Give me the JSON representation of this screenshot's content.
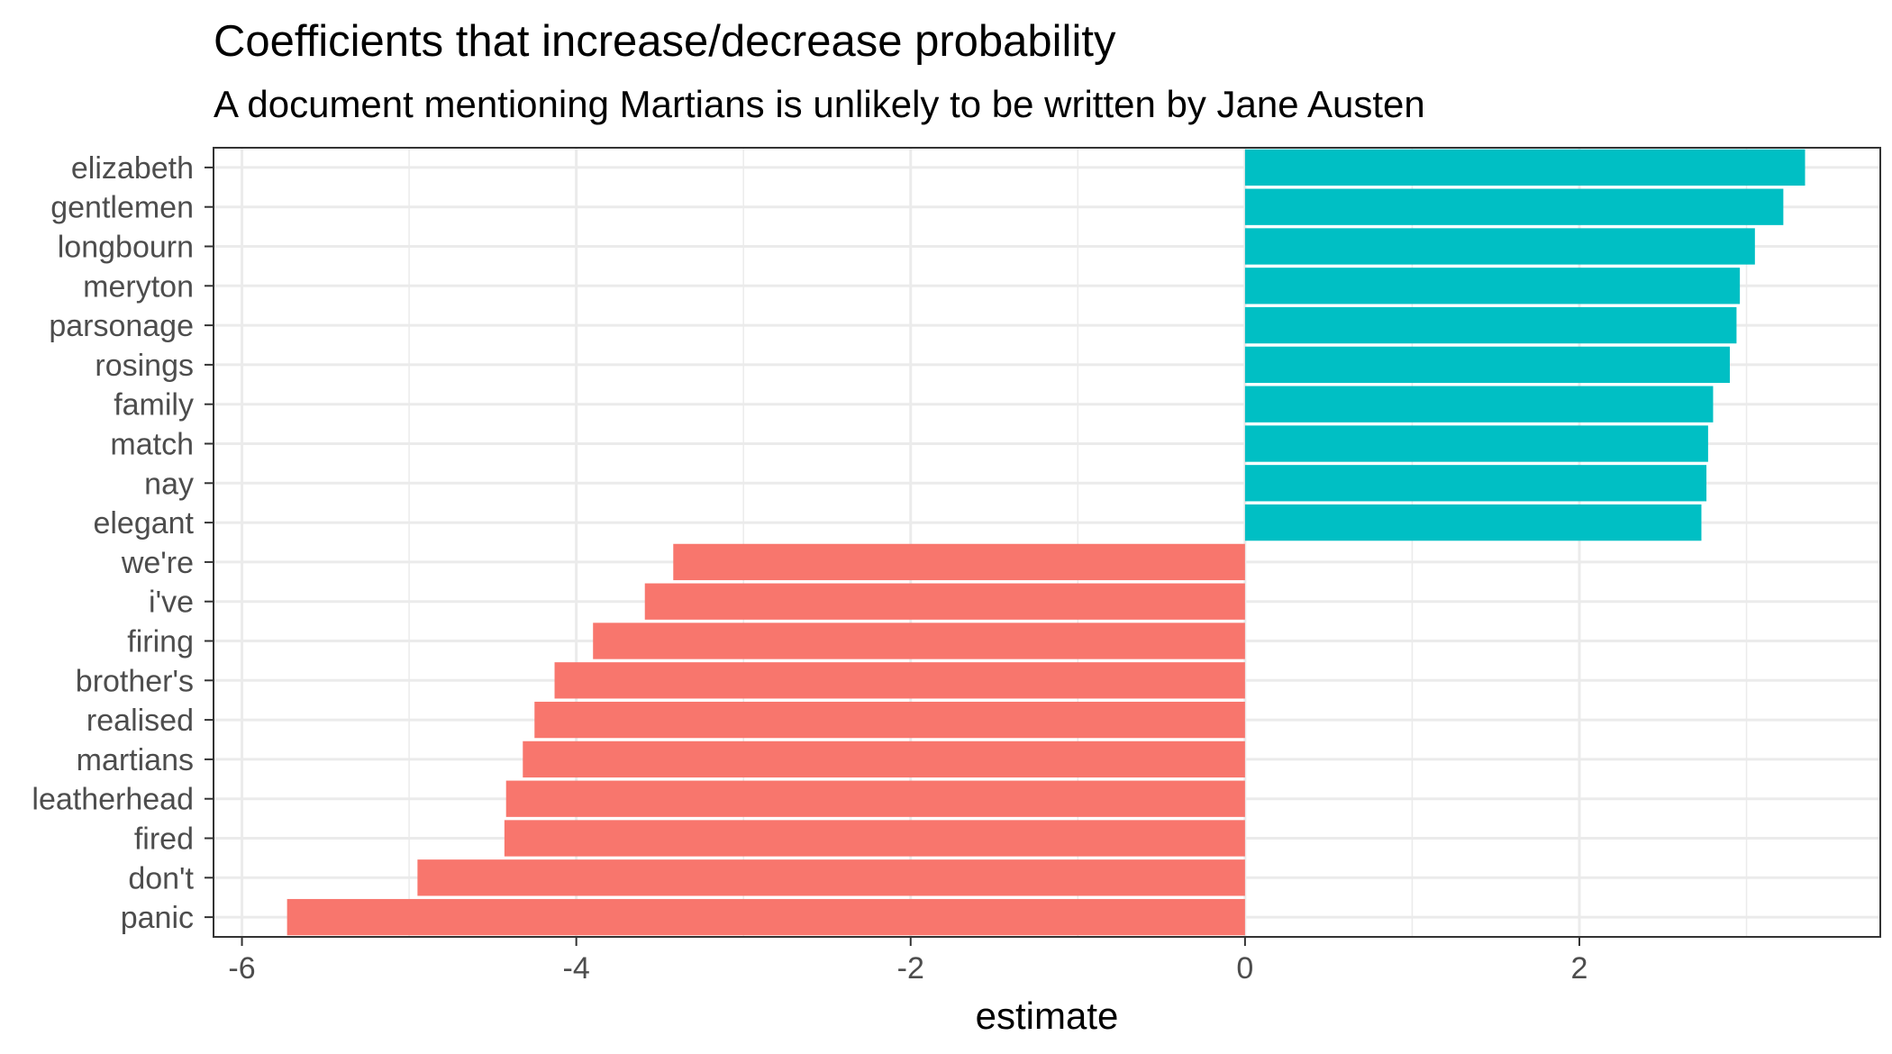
{
  "chart_data": {
    "type": "bar",
    "orientation": "horizontal",
    "title": "Coefficients that increase/decrease probability",
    "subtitle": "A document mentioning Martians is unlikely to be written by Jane Austen",
    "xlabel": "estimate",
    "ylabel": "",
    "xlim": [
      -6.17,
      3.8
    ],
    "x_ticks": [
      -6,
      -4,
      -2,
      0,
      2
    ],
    "x_tick_labels": [
      "-6",
      "-4",
      "-2",
      "0",
      "2"
    ],
    "grid": true,
    "legend": "none",
    "colors": {
      "positive": "#00BFC4",
      "negative": "#F8766D",
      "grid": "#ebebeb",
      "panel_border": "#333333"
    },
    "categories": [
      "elizabeth",
      "gentlemen",
      "longbourn",
      "meryton",
      "parsonage",
      "rosings",
      "family",
      "match",
      "nay",
      "elegant",
      "we're",
      "i've",
      "firing",
      "brother's",
      "realised",
      "martians",
      "leatherhead",
      "fired",
      "don't",
      "panic"
    ],
    "values": [
      3.35,
      3.22,
      3.05,
      2.96,
      2.94,
      2.9,
      2.8,
      2.77,
      2.76,
      2.73,
      -3.42,
      -3.59,
      -3.9,
      -4.13,
      -4.25,
      -4.32,
      -4.42,
      -4.43,
      -4.95,
      -5.73
    ]
  }
}
